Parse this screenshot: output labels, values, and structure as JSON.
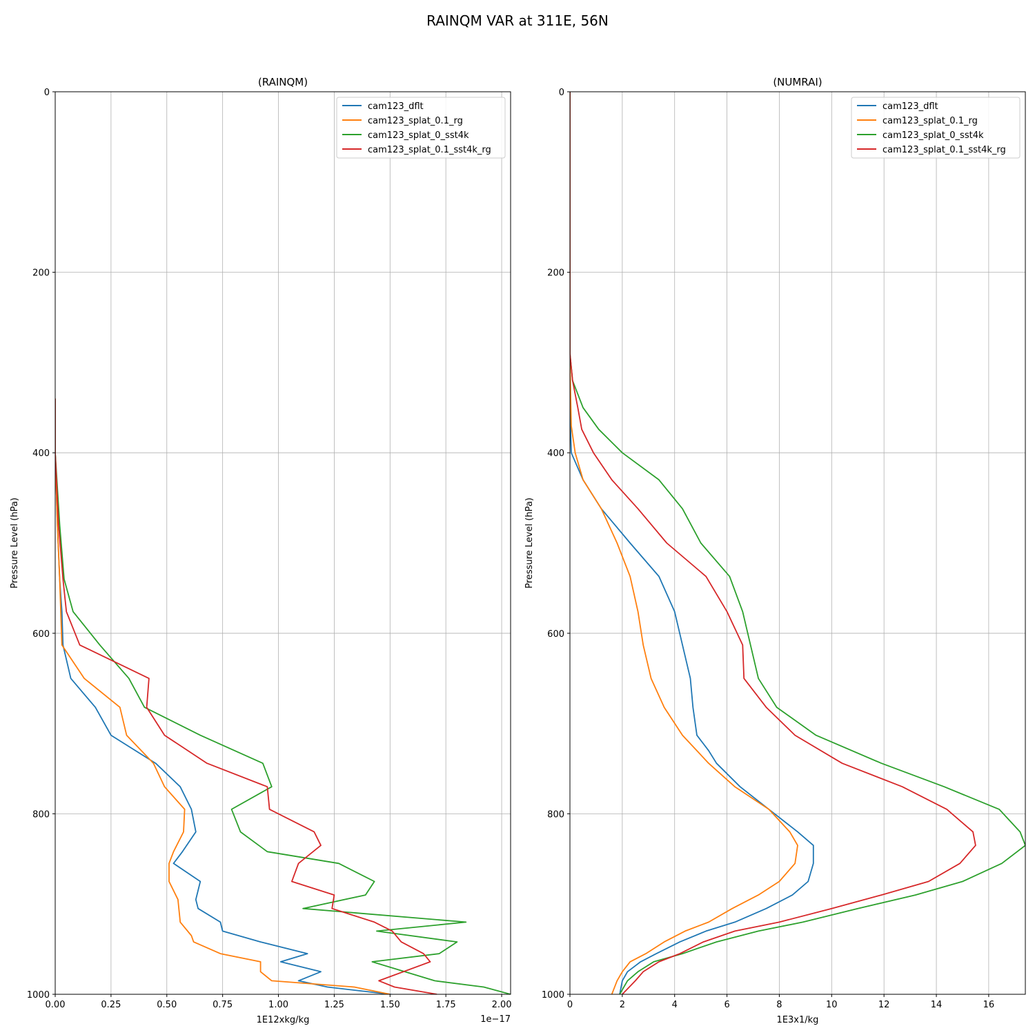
{
  "figure": {
    "title": "RAINQM VAR at 311E, 56N"
  },
  "colors": {
    "cam123_dflt": "#1f77b4",
    "cam123_splat_0.1_rg": "#ff7f0e",
    "cam123_splat_0_sst4k": "#2ca02c",
    "cam123_splat_0.1_sst4k_rg": "#d62728"
  },
  "chart_data": [
    {
      "type": "line",
      "title": "(RAINQM)",
      "xlabel": "1E12xkg/kg",
      "ylabel": "Pressure Level (hPa)",
      "x_offset_text": "1e−17",
      "xlim": [
        0,
        2.04
      ],
      "ylim": [
        1000,
        0
      ],
      "xticks": [
        "0.00",
        "0.25",
        "0.50",
        "0.75",
        "1.00",
        "1.25",
        "1.50",
        "1.75",
        "2.00"
      ],
      "xtick_values": [
        0,
        0.25,
        0.5,
        0.75,
        1.0,
        1.25,
        1.5,
        1.75,
        2.0
      ],
      "yticks": [
        "0",
        "200",
        "400",
        "600",
        "800",
        "1000"
      ],
      "ytick_values": [
        0,
        200,
        400,
        600,
        800,
        1000
      ],
      "grid": true,
      "legend": "top-right",
      "series": [
        {
          "name": "cam123_dflt",
          "points": [
            [
              0,
              340
            ],
            [
              0,
              400
            ],
            [
              0.01,
              480
            ],
            [
              0.02,
              540
            ],
            [
              0.03,
              576
            ],
            [
              0.035,
              613
            ],
            [
              0.07,
              650
            ],
            [
              0.18,
              682
            ],
            [
              0.25,
              713
            ],
            [
              0.45,
              744
            ],
            [
              0.56,
              770
            ],
            [
              0.61,
              795
            ],
            [
              0.63,
              820
            ],
            [
              0.57,
              842
            ],
            [
              0.53,
              855
            ],
            [
              0.65,
              875
            ],
            [
              0.63,
              895
            ],
            [
              0.64,
              905
            ],
            [
              0.74,
              920
            ],
            [
              0.75,
              930
            ],
            [
              0.92,
              942
            ],
            [
              1.13,
              955
            ],
            [
              1.01,
              964
            ],
            [
              1.19,
              975
            ],
            [
              1.09,
              985
            ],
            [
              1.22,
              992
            ],
            [
              1.5,
              1000
            ],
            [
              1.57,
              1002
            ]
          ]
        },
        {
          "name": "cam123_splat_0.1_rg",
          "points": [
            [
              0,
              340
            ],
            [
              0,
              400
            ],
            [
              0.01,
              480
            ],
            [
              0.02,
              540
            ],
            [
              0.025,
              576
            ],
            [
              0.03,
              613
            ],
            [
              0.13,
              650
            ],
            [
              0.29,
              682
            ],
            [
              0.32,
              713
            ],
            [
              0.44,
              744
            ],
            [
              0.49,
              770
            ],
            [
              0.58,
              795
            ],
            [
              0.575,
              820
            ],
            [
              0.53,
              842
            ],
            [
              0.51,
              855
            ],
            [
              0.51,
              875
            ],
            [
              0.55,
              895
            ],
            [
              0.56,
              920
            ],
            [
              0.61,
              935
            ],
            [
              0.62,
              942
            ],
            [
              0.74,
              955
            ],
            [
              0.92,
              964
            ],
            [
              0.92,
              975
            ],
            [
              0.97,
              985
            ],
            [
              1.34,
              992
            ],
            [
              1.5,
              1000
            ]
          ]
        },
        {
          "name": "cam123_splat_0_sst4k",
          "points": [
            [
              0,
              340
            ],
            [
              0,
              400
            ],
            [
              0.02,
              480
            ],
            [
              0.04,
              540
            ],
            [
              0.08,
              576
            ],
            [
              0.2,
              613
            ],
            [
              0.33,
              650
            ],
            [
              0.4,
              682
            ],
            [
              0.65,
              713
            ],
            [
              0.93,
              744
            ],
            [
              0.97,
              770
            ],
            [
              0.79,
              795
            ],
            [
              0.83,
              820
            ],
            [
              0.95,
              842
            ],
            [
              1.27,
              855
            ],
            [
              1.43,
              875
            ],
            [
              1.39,
              890
            ],
            [
              1.11,
              905
            ],
            [
              1.84,
              920
            ],
            [
              1.44,
              930
            ],
            [
              1.8,
              942
            ],
            [
              1.72,
              955
            ],
            [
              1.42,
              964
            ],
            [
              1.7,
              985
            ],
            [
              1.92,
              992
            ],
            [
              2.04,
              1000
            ]
          ]
        },
        {
          "name": "cam123_splat_0.1_sst4k_rg",
          "points": [
            [
              0,
              340
            ],
            [
              0,
              400
            ],
            [
              0.015,
              480
            ],
            [
              0.035,
              540
            ],
            [
              0.05,
              576
            ],
            [
              0.11,
              613
            ],
            [
              0.42,
              650
            ],
            [
              0.41,
              682
            ],
            [
              0.49,
              713
            ],
            [
              0.68,
              744
            ],
            [
              0.95,
              770
            ],
            [
              0.96,
              795
            ],
            [
              1.16,
              820
            ],
            [
              1.19,
              835
            ],
            [
              1.09,
              855
            ],
            [
              1.06,
              875
            ],
            [
              1.25,
              890
            ],
            [
              1.24,
              905
            ],
            [
              1.43,
              920
            ],
            [
              1.51,
              930
            ],
            [
              1.55,
              942
            ],
            [
              1.65,
              955
            ],
            [
              1.68,
              964
            ],
            [
              1.45,
              985
            ],
            [
              1.52,
              992
            ],
            [
              1.71,
              1000
            ]
          ]
        }
      ]
    },
    {
      "type": "line",
      "title": "(NUMRAI)",
      "xlabel": "1E3x1/kg",
      "ylabel": "Pressure Level (hPa)",
      "xlim": [
        0,
        17.4
      ],
      "ylim": [
        1000,
        0
      ],
      "xticks": [
        "0",
        "2",
        "4",
        "6",
        "8",
        "10",
        "12",
        "14",
        "16"
      ],
      "xtick_values": [
        0,
        2,
        4,
        6,
        8,
        10,
        12,
        14,
        16
      ],
      "yticks": [
        "0",
        "200",
        "400",
        "600",
        "800",
        "1000"
      ],
      "ytick_values": [
        0,
        200,
        400,
        600,
        800,
        1000
      ],
      "grid": true,
      "legend": "top-right",
      "series": [
        {
          "name": "cam123_dflt",
          "points": [
            [
              0,
              0
            ],
            [
              0,
              300
            ],
            [
              0.02,
              370
            ],
            [
              0.05,
              400
            ],
            [
              0.5,
              430
            ],
            [
              1.2,
              462
            ],
            [
              2.3,
              500
            ],
            [
              3.4,
              537
            ],
            [
              4.0,
              576
            ],
            [
              4.3,
              613
            ],
            [
              4.6,
              650
            ],
            [
              4.7,
              682
            ],
            [
              4.85,
              713
            ],
            [
              5.3,
              730
            ],
            [
              5.6,
              744
            ],
            [
              6.5,
              770
            ],
            [
              7.6,
              795
            ],
            [
              8.7,
              820
            ],
            [
              9.3,
              835
            ],
            [
              9.3,
              855
            ],
            [
              9.1,
              875
            ],
            [
              8.5,
              890
            ],
            [
              7.5,
              905
            ],
            [
              6.3,
              920
            ],
            [
              5.2,
              930
            ],
            [
              4.2,
              942
            ],
            [
              3.3,
              955
            ],
            [
              2.7,
              964
            ],
            [
              2.2,
              975
            ],
            [
              2.0,
              985
            ],
            [
              1.9,
              1000
            ]
          ]
        },
        {
          "name": "cam123_splat_0.1_rg",
          "points": [
            [
              0,
              0
            ],
            [
              0,
              300
            ],
            [
              0.05,
              370
            ],
            [
              0.2,
              400
            ],
            [
              0.5,
              430
            ],
            [
              1.2,
              462
            ],
            [
              1.8,
              500
            ],
            [
              2.3,
              537
            ],
            [
              2.6,
              576
            ],
            [
              2.8,
              613
            ],
            [
              3.1,
              650
            ],
            [
              3.6,
              682
            ],
            [
              4.3,
              713
            ],
            [
              5.3,
              744
            ],
            [
              6.3,
              770
            ],
            [
              7.6,
              795
            ],
            [
              8.4,
              820
            ],
            [
              8.7,
              835
            ],
            [
              8.6,
              855
            ],
            [
              8.0,
              875
            ],
            [
              7.2,
              890
            ],
            [
              6.2,
              905
            ],
            [
              5.3,
              920
            ],
            [
              4.4,
              930
            ],
            [
              3.6,
              942
            ],
            [
              2.9,
              955
            ],
            [
              2.3,
              964
            ],
            [
              2.0,
              975
            ],
            [
              1.8,
              985
            ],
            [
              1.6,
              1000
            ]
          ]
        },
        {
          "name": "cam123_splat_0_sst4k",
          "points": [
            [
              0,
              0
            ],
            [
              0,
              290
            ],
            [
              0.1,
              320
            ],
            [
              0.5,
              350
            ],
            [
              1.1,
              374
            ],
            [
              2.0,
              400
            ],
            [
              3.4,
              430
            ],
            [
              4.3,
              462
            ],
            [
              5.0,
              500
            ],
            [
              6.1,
              537
            ],
            [
              6.6,
              576
            ],
            [
              6.9,
              613
            ],
            [
              7.2,
              650
            ],
            [
              7.9,
              682
            ],
            [
              9.4,
              713
            ],
            [
              11.9,
              744
            ],
            [
              14.3,
              770
            ],
            [
              16.4,
              795
            ],
            [
              17.2,
              820
            ],
            [
              17.4,
              835
            ],
            [
              16.5,
              855
            ],
            [
              15.0,
              875
            ],
            [
              13.2,
              890
            ],
            [
              11.0,
              905
            ],
            [
              8.9,
              920
            ],
            [
              7.2,
              930
            ],
            [
              5.6,
              942
            ],
            [
              4.3,
              955
            ],
            [
              3.2,
              964
            ],
            [
              2.6,
              975
            ],
            [
              2.2,
              985
            ],
            [
              1.9,
              1000
            ]
          ]
        },
        {
          "name": "cam123_splat_0.1_sst4k_rg",
          "points": [
            [
              0,
              0
            ],
            [
              0,
              290
            ],
            [
              0.1,
              320
            ],
            [
              0.3,
              350
            ],
            [
              0.45,
              374
            ],
            [
              0.9,
              400
            ],
            [
              1.6,
              430
            ],
            [
              2.6,
              462
            ],
            [
              3.7,
              500
            ],
            [
              5.2,
              537
            ],
            [
              6.0,
              576
            ],
            [
              6.6,
              613
            ],
            [
              6.65,
              650
            ],
            [
              7.5,
              682
            ],
            [
              8.6,
              713
            ],
            [
              10.4,
              744
            ],
            [
              12.7,
              770
            ],
            [
              14.4,
              795
            ],
            [
              15.4,
              820
            ],
            [
              15.5,
              835
            ],
            [
              14.9,
              855
            ],
            [
              13.7,
              875
            ],
            [
              11.9,
              890
            ],
            [
              10.0,
              905
            ],
            [
              8.0,
              920
            ],
            [
              6.3,
              930
            ],
            [
              5.1,
              942
            ],
            [
              4.2,
              955
            ],
            [
              3.4,
              964
            ],
            [
              2.8,
              975
            ],
            [
              2.5,
              985
            ],
            [
              2.0,
              1000
            ]
          ]
        }
      ]
    }
  ]
}
